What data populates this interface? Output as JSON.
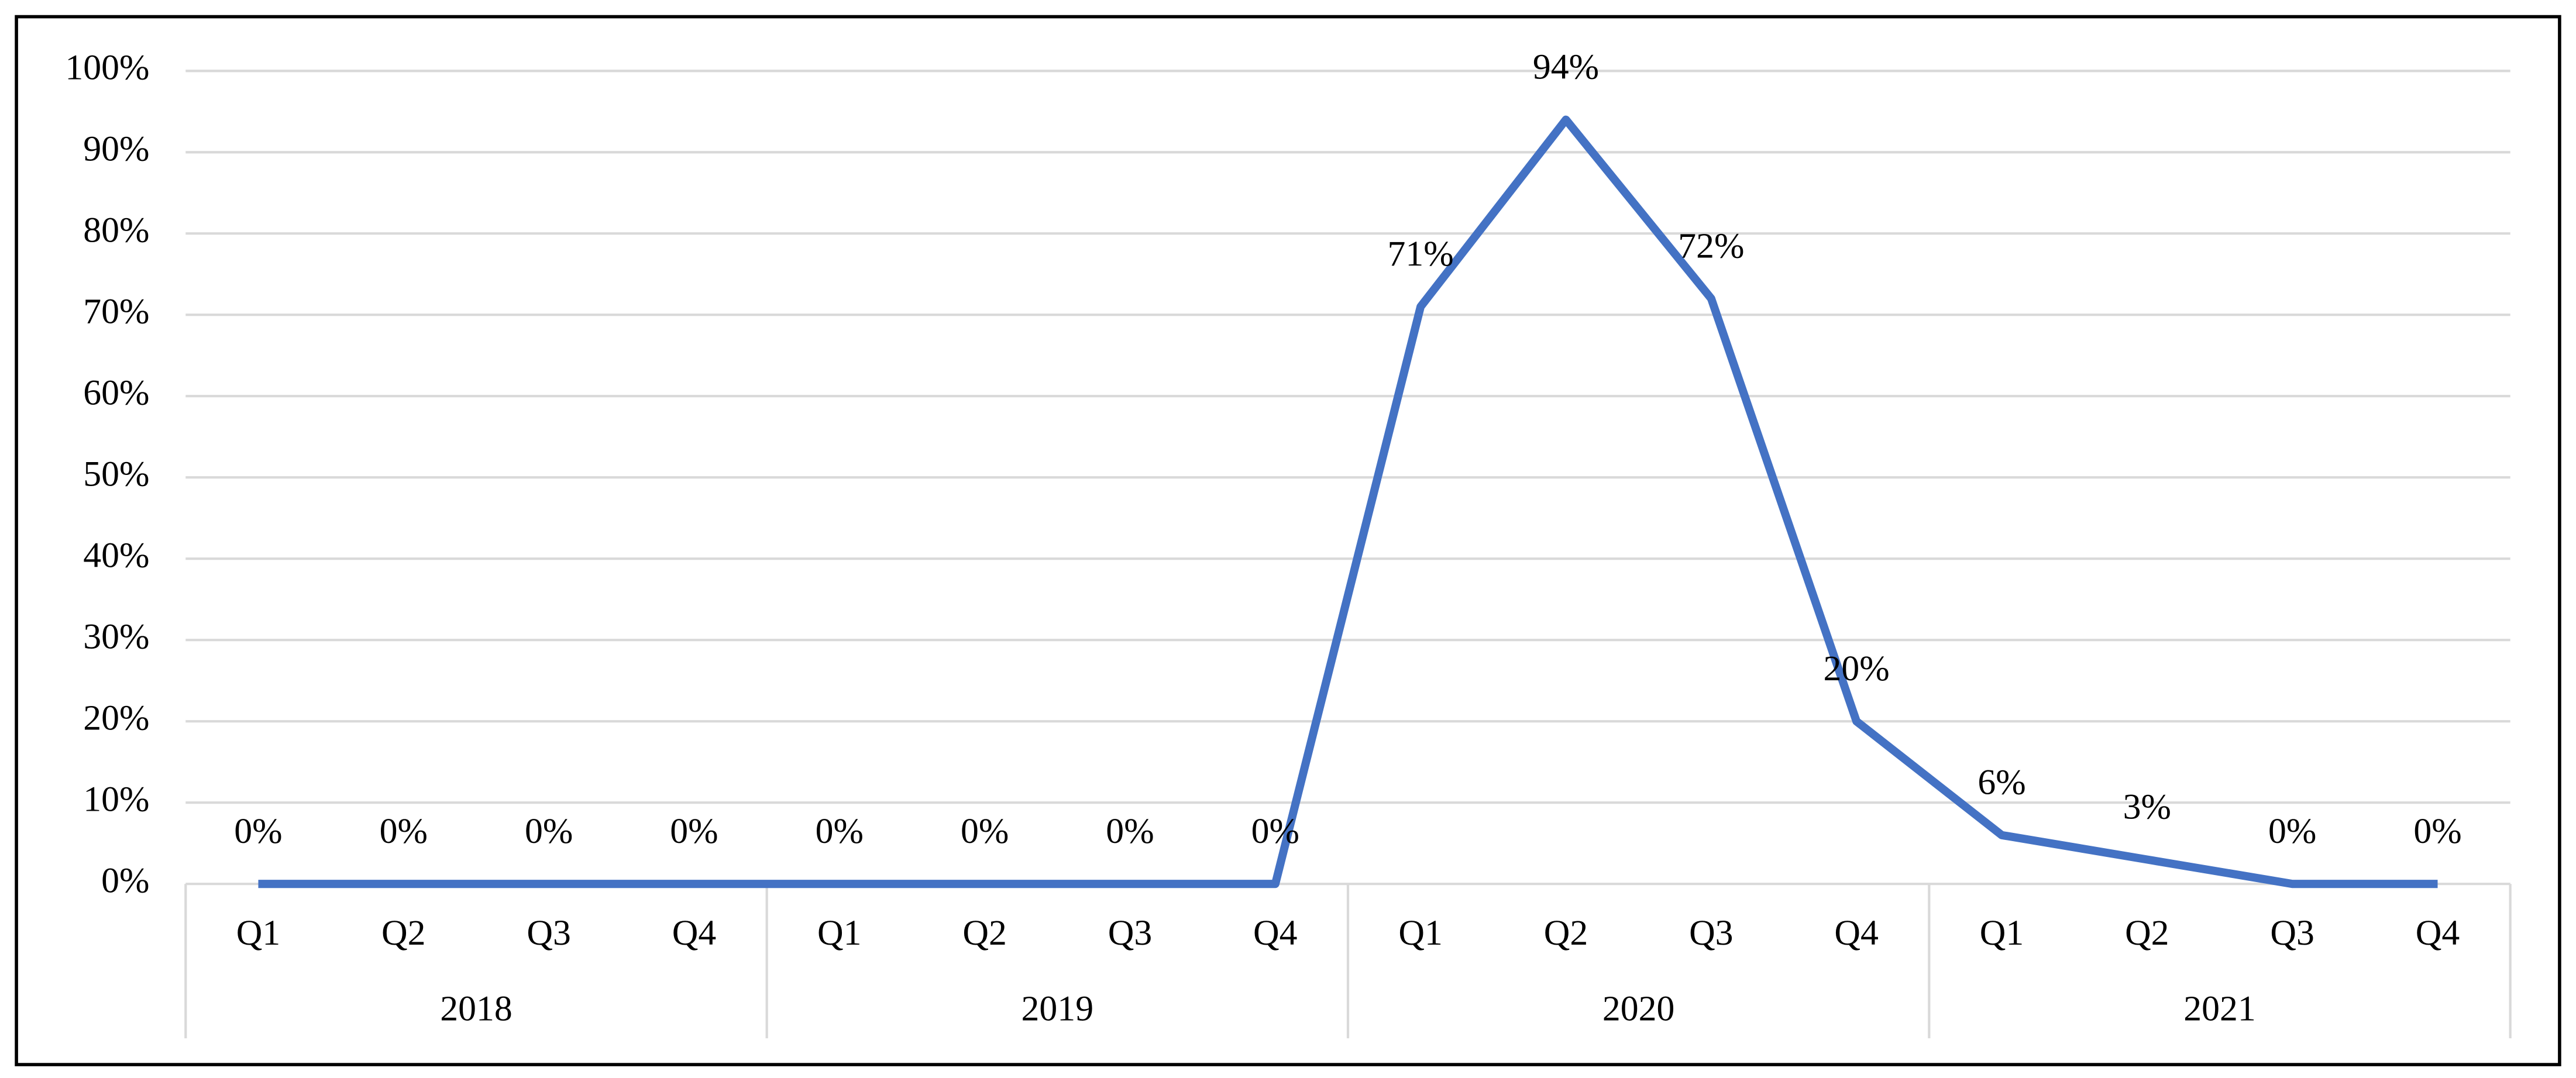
{
  "chart_data": {
    "type": "line",
    "categories": [
      "Q1",
      "Q2",
      "Q3",
      "Q4",
      "Q1",
      "Q2",
      "Q3",
      "Q4",
      "Q1",
      "Q2",
      "Q3",
      "Q4",
      "Q1",
      "Q2",
      "Q3",
      "Q4"
    ],
    "groups": [
      "2018",
      "2019",
      "2020",
      "2021"
    ],
    "values": [
      0,
      0,
      0,
      0,
      0,
      0,
      0,
      0,
      71,
      94,
      72,
      20,
      6,
      3,
      0,
      0
    ],
    "value_labels": [
      "0%",
      "0%",
      "0%",
      "0%",
      "0%",
      "0%",
      "0%",
      "0%",
      "71%",
      "94%",
      "72%",
      "20%",
      "6%",
      "3%",
      "0%",
      "0%"
    ],
    "color": "#4472c4",
    "ylim": [
      0,
      100
    ],
    "yticks": [
      {
        "value": 0,
        "label": "0%"
      },
      {
        "value": 10,
        "label": "10%"
      },
      {
        "value": 20,
        "label": "20%"
      },
      {
        "value": 30,
        "label": "30%"
      },
      {
        "value": 40,
        "label": "40%"
      },
      {
        "value": 50,
        "label": "50%"
      },
      {
        "value": 60,
        "label": "60%"
      },
      {
        "value": 70,
        "label": "70%"
      },
      {
        "value": 80,
        "label": "80%"
      },
      {
        "value": 90,
        "label": "90%"
      },
      {
        "value": 100,
        "label": "100%"
      }
    ],
    "grid": true
  }
}
